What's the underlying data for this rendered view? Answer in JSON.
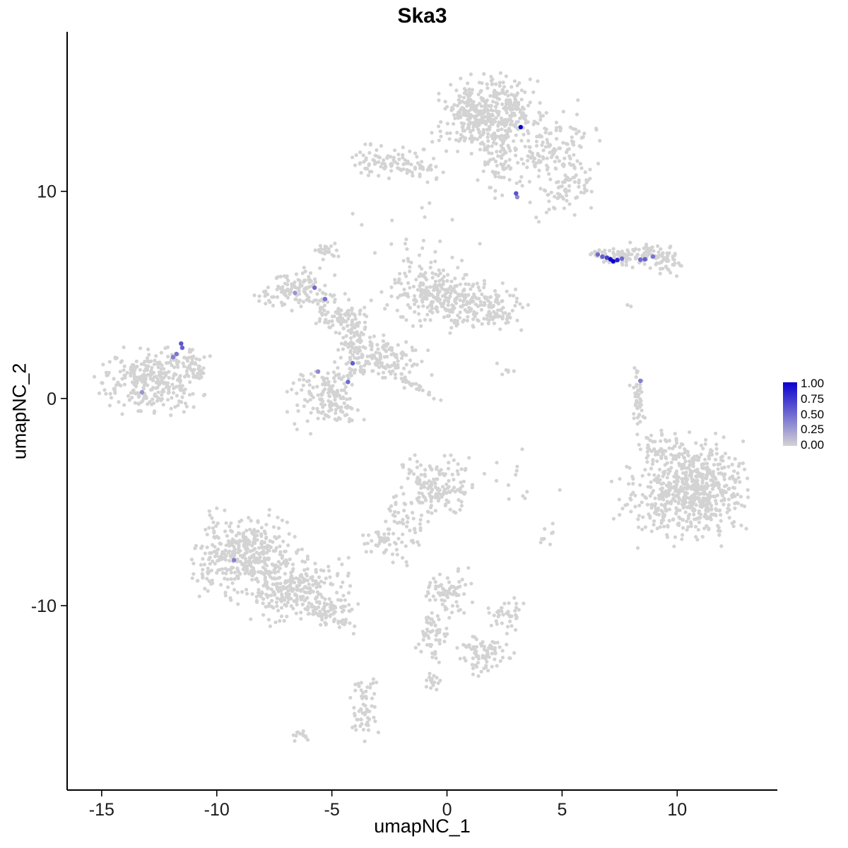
{
  "chart_data": {
    "type": "scatter",
    "title": "Ska3",
    "xlabel": "umapNC_1",
    "ylabel": "umapNC_2",
    "xlim": [
      -16.5,
      14.35
    ],
    "ylim": [
      -18.9,
      17.7
    ],
    "x_ticks": [
      -15,
      -10,
      -5,
      0,
      5,
      10
    ],
    "y_ticks": [
      -10,
      0,
      10
    ],
    "grid": false,
    "seed": 20240613,
    "point_radius_background": 2.6,
    "point_radius_expressing": 3.2,
    "legend": {
      "position": "right",
      "labels": [
        "1.00",
        "0.75",
        "0.50",
        "0.25",
        "0.00"
      ],
      "low_color": "#D3D3D3",
      "high_color": "#0B00CF"
    },
    "background_cells": {
      "color": "#D3D3D3",
      "clusters": [
        {
          "name": "top-main",
          "cx": 2.1,
          "cy": 13.9,
          "sx": 0.95,
          "sy": 0.8,
          "n": 300
        },
        {
          "name": "top-left-lobe",
          "cx": 1.0,
          "cy": 13.4,
          "sx": 0.7,
          "sy": 0.8,
          "n": 120
        },
        {
          "name": "top-tail",
          "cx": 2.4,
          "cy": 11.7,
          "sx": 0.5,
          "sy": 0.9,
          "n": 90
        },
        {
          "name": "top-right-arm",
          "cx": 4.2,
          "cy": 11.9,
          "sx": 0.8,
          "sy": 0.5,
          "n": 85
        },
        {
          "name": "top-right-low",
          "cx": 5.3,
          "cy": 10.5,
          "sx": 0.6,
          "sy": 0.5,
          "n": 55
        },
        {
          "name": "top-right-scatter",
          "cx": 5.0,
          "cy": 12.8,
          "sx": 0.8,
          "sy": 0.7,
          "n": 40
        },
        {
          "name": "top-right-sparse",
          "cx": 4.9,
          "cy": 9.5,
          "sx": 0.7,
          "sy": 0.5,
          "n": 25
        },
        {
          "name": "upper-left-small",
          "cx": -2.6,
          "cy": 11.4,
          "sx": 0.9,
          "sy": 0.4,
          "n": 85
        },
        {
          "name": "upper-left-small-tail",
          "cx": -1.1,
          "cy": 10.9,
          "sx": 0.4,
          "sy": 0.28,
          "n": 22
        },
        {
          "name": "right-ribbon-a",
          "cx": 7.3,
          "cy": 6.85,
          "sx": 0.5,
          "sy": 0.2,
          "n": 55
        },
        {
          "name": "right-ribbon-b",
          "cx": 8.7,
          "cy": 6.9,
          "sx": 0.7,
          "sy": 0.28,
          "n": 85
        },
        {
          "name": "right-ribbon-c",
          "cx": 9.6,
          "cy": 6.45,
          "sx": 0.33,
          "sy": 0.26,
          "n": 24
        },
        {
          "name": "lone-dot",
          "cx": 7.9,
          "cy": 4.5,
          "sx": 0.08,
          "sy": 0.06,
          "n": 2
        },
        {
          "name": "mid-upperleft-arm",
          "cx": -6.6,
          "cy": 5.3,
          "sx": 0.8,
          "sy": 0.45,
          "n": 115
        },
        {
          "name": "mid-inner-arm",
          "cx": -4.8,
          "cy": 4.1,
          "sx": 0.65,
          "sy": 0.45,
          "n": 85
        },
        {
          "name": "small-isolated",
          "cx": -5.2,
          "cy": 7.1,
          "sx": 0.28,
          "sy": 0.2,
          "n": 22
        },
        {
          "name": "mid-column",
          "cx": -3.9,
          "cy": 2.7,
          "sx": 0.45,
          "sy": 0.75,
          "n": 80
        },
        {
          "name": "mid-dense-a",
          "cx": -0.8,
          "cy": 5.1,
          "sx": 0.9,
          "sy": 0.7,
          "n": 190
        },
        {
          "name": "mid-dense-b",
          "cx": 0.9,
          "cy": 4.5,
          "sx": 0.75,
          "sy": 0.6,
          "n": 130
        },
        {
          "name": "mid-right-arm",
          "cx": 2.3,
          "cy": 4.3,
          "sx": 0.55,
          "sy": 0.45,
          "n": 60
        },
        {
          "name": "mid-band",
          "cx": -2.8,
          "cy": 1.8,
          "sx": 0.95,
          "sy": 0.55,
          "n": 120
        },
        {
          "name": "mid-streak",
          "cx": -1.85,
          "cy": 0.95,
          "sx": 0.95,
          "sy": 0.1,
          "n": 40,
          "angle": -35
        },
        {
          "name": "lower-left-blob",
          "cx": -5.2,
          "cy": 0.0,
          "sx": 0.75,
          "sy": 0.75,
          "n": 150
        },
        {
          "name": "pair-dots",
          "cx": 2.6,
          "cy": 1.35,
          "sx": 0.2,
          "sy": 0.15,
          "n": 6
        },
        {
          "name": "sparse-upper-mid",
          "cx": -1.6,
          "cy": 7.7,
          "sx": 1.5,
          "sy": 0.8,
          "n": 20
        },
        {
          "name": "far-left-main",
          "cx": -12.9,
          "cy": 0.9,
          "sx": 1.05,
          "sy": 0.72,
          "n": 290
        },
        {
          "name": "far-left-tail",
          "cx": -11.1,
          "cy": 1.7,
          "sx": 0.5,
          "sy": 0.38,
          "n": 50
        },
        {
          "name": "right-sliver",
          "cx": 8.3,
          "cy": 0.0,
          "sx": 0.16,
          "sy": 0.72,
          "n": 45
        },
        {
          "name": "right-big-main",
          "cx": 10.9,
          "cy": -4.4,
          "sx": 0.98,
          "sy": 1.15,
          "n": 520
        },
        {
          "name": "right-big-left",
          "cx": 9.0,
          "cy": -4.8,
          "sx": 0.85,
          "sy": 1.1,
          "n": 120
        },
        {
          "name": "right-big-toparm",
          "cx": 9.4,
          "cy": -2.5,
          "sx": 0.55,
          "sy": 0.45,
          "n": 55
        },
        {
          "name": "center-bottom",
          "cx": -0.5,
          "cy": -4.3,
          "sx": 0.8,
          "sy": 0.7,
          "n": 160
        },
        {
          "name": "center-bottom-tail",
          "cx": -1.9,
          "cy": -6.3,
          "sx": 0.38,
          "sy": 0.75,
          "n": 50
        },
        {
          "name": "small-blob-left",
          "cx": -2.9,
          "cy": -7.0,
          "sx": 0.35,
          "sy": 0.35,
          "n": 38
        },
        {
          "name": "bottom-left-main",
          "cx": -8.8,
          "cy": -7.5,
          "sx": 1.05,
          "sy": 0.95,
          "n": 380
        },
        {
          "name": "bottom-left-ext",
          "cx": -6.6,
          "cy": -9.2,
          "sx": 1.1,
          "sy": 0.8,
          "n": 250
        },
        {
          "name": "bottom-left-tail",
          "cx": -4.9,
          "cy": -10.3,
          "sx": 0.5,
          "sy": 0.45,
          "n": 75
        },
        {
          "name": "chain-a",
          "cx": 0.0,
          "cy": -9.4,
          "sx": 0.48,
          "sy": 0.52,
          "n": 70
        },
        {
          "name": "chain-b",
          "cx": -0.6,
          "cy": -11.3,
          "sx": 0.33,
          "sy": 0.6,
          "n": 58
        },
        {
          "name": "chain-c",
          "cx": 1.6,
          "cy": -12.3,
          "sx": 0.6,
          "sy": 0.48,
          "n": 78
        },
        {
          "name": "chain-arm",
          "cx": 2.5,
          "cy": -10.4,
          "sx": 0.38,
          "sy": 0.45,
          "n": 38
        },
        {
          "name": "chain-small",
          "cx": -0.5,
          "cy": -13.6,
          "sx": 0.22,
          "sy": 0.2,
          "n": 16
        },
        {
          "name": "bottom-pillar",
          "cx": -3.6,
          "cy": -15.0,
          "sx": 0.28,
          "sy": 0.7,
          "n": 58
        },
        {
          "name": "bottom-tiny",
          "cx": -6.4,
          "cy": -16.3,
          "sx": 0.26,
          "sy": 0.13,
          "n": 12
        },
        {
          "name": "sparse-right-center",
          "cx": 3.1,
          "cy": -3.6,
          "sx": 0.8,
          "sy": 0.7,
          "n": 13
        },
        {
          "name": "sparse-right-low",
          "cx": 4.6,
          "cy": -6.6,
          "sx": 0.45,
          "sy": 0.35,
          "n": 9
        }
      ]
    },
    "expressing_cells": {
      "points": [
        {
          "x": 3.2,
          "y": 13.1,
          "value": 1.0
        },
        {
          "x": 3.0,
          "y": 9.9,
          "value": 0.6
        },
        {
          "x": 3.05,
          "y": 9.72,
          "value": 0.35
        },
        {
          "x": 6.55,
          "y": 6.95,
          "value": 0.5
        },
        {
          "x": 6.75,
          "y": 6.85,
          "value": 0.55
        },
        {
          "x": 6.95,
          "y": 6.8,
          "value": 0.7
        },
        {
          "x": 7.1,
          "y": 6.72,
          "value": 0.95
        },
        {
          "x": 7.22,
          "y": 6.62,
          "value": 1.0
        },
        {
          "x": 7.4,
          "y": 6.68,
          "value": 0.85
        },
        {
          "x": 7.6,
          "y": 6.75,
          "value": 0.5
        },
        {
          "x": 8.4,
          "y": 6.7,
          "value": 0.5
        },
        {
          "x": 8.6,
          "y": 6.72,
          "value": 0.55
        },
        {
          "x": 8.95,
          "y": 6.85,
          "value": 0.45
        },
        {
          "x": -5.75,
          "y": 5.35,
          "value": 0.5
        },
        {
          "x": -6.6,
          "y": 5.1,
          "value": 0.3
        },
        {
          "x": -5.3,
          "y": 4.8,
          "value": 0.45
        },
        {
          "x": -4.1,
          "y": 1.7,
          "value": 0.55
        },
        {
          "x": -5.6,
          "y": 1.3,
          "value": 0.35
        },
        {
          "x": -4.3,
          "y": 0.8,
          "value": 0.5
        },
        {
          "x": -11.55,
          "y": 2.65,
          "value": 0.6
        },
        {
          "x": -11.5,
          "y": 2.45,
          "value": 0.55
        },
        {
          "x": -11.75,
          "y": 2.15,
          "value": 0.45
        },
        {
          "x": -11.9,
          "y": 2.0,
          "value": 0.4
        },
        {
          "x": -13.25,
          "y": 0.3,
          "value": 0.3
        },
        {
          "x": 8.4,
          "y": 0.85,
          "value": 0.4
        },
        {
          "x": -9.25,
          "y": -7.8,
          "value": 0.4
        }
      ]
    }
  }
}
